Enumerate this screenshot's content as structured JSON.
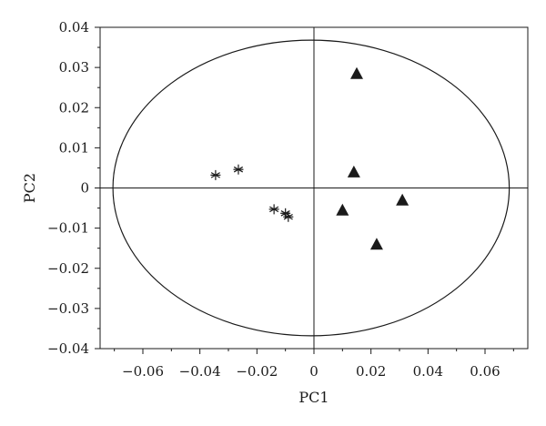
{
  "chart_data": {
    "type": "scatter",
    "title": "",
    "xlabel": "PC1",
    "ylabel": "PC2",
    "xlim": [
      -0.075,
      0.075
    ],
    "ylim": [
      -0.04,
      0.04
    ],
    "grid": false,
    "legend": "none",
    "x_ticks": [
      {
        "value": -0.06,
        "label": "−0.06"
      },
      {
        "value": -0.04,
        "label": "−0.04"
      },
      {
        "value": -0.02,
        "label": "−0.02"
      },
      {
        "value": 0,
        "label": "0"
      },
      {
        "value": 0.02,
        "label": "0.02"
      },
      {
        "value": 0.04,
        "label": "0.04"
      },
      {
        "value": 0.06,
        "label": "0.06"
      }
    ],
    "y_ticks": [
      {
        "value": -0.04,
        "label": "−0.04"
      },
      {
        "value": -0.03,
        "label": "−0.03"
      },
      {
        "value": -0.02,
        "label": "−0.02"
      },
      {
        "value": -0.01,
        "label": "−0.01"
      },
      {
        "value": 0,
        "label": "0"
      },
      {
        "value": 0.01,
        "label": "0.01"
      },
      {
        "value": 0.02,
        "label": "0.02"
      },
      {
        "value": 0.03,
        "label": "0.03"
      },
      {
        "value": 0.04,
        "label": "0.04"
      }
    ],
    "reference_lines": {
      "x": 0,
      "y": 0
    },
    "ellipse": {
      "center": [
        -0.001,
        0.0
      ],
      "semi_axis_x": 0.0695,
      "semi_axis_y": 0.0368
    },
    "series": [
      {
        "marker": "asterisk",
        "color": "#1a1a1a",
        "points": [
          {
            "x": -0.0345,
            "y": 0.0032
          },
          {
            "x": -0.0265,
            "y": 0.0046
          },
          {
            "x": -0.014,
            "y": -0.0053
          },
          {
            "x": -0.01,
            "y": -0.0063
          },
          {
            "x": -0.009,
            "y": -0.0072
          }
        ]
      },
      {
        "marker": "triangle",
        "color": "#1a1a1a",
        "points": [
          {
            "x": 0.015,
            "y": 0.0285
          },
          {
            "x": 0.014,
            "y": 0.004
          },
          {
            "x": 0.01,
            "y": -0.0055
          },
          {
            "x": 0.031,
            "y": -0.003
          },
          {
            "x": 0.022,
            "y": -0.014
          }
        ]
      }
    ]
  }
}
